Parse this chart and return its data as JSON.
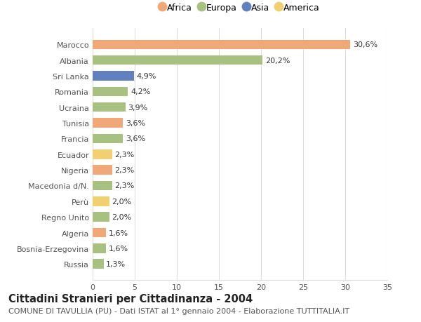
{
  "title": "Cittadini Stranieri per Cittadinanza - 2004",
  "subtitle": "COMUNE DI TAVULLIA (PU) - Dati ISTAT al 1° gennaio 2004 - Elaborazione TUTTITALIA.IT",
  "legend_labels": [
    "Africa",
    "Europa",
    "Asia",
    "America"
  ],
  "legend_colors": [
    "#f0a878",
    "#a8c080",
    "#6080c0",
    "#f0d070"
  ],
  "categories": [
    "Marocco",
    "Albania",
    "Sri Lanka",
    "Romania",
    "Ucraina",
    "Tunisia",
    "Francia",
    "Ecuador",
    "Nigeria",
    "Macedonia d/N.",
    "Perù",
    "Regno Unito",
    "Algeria",
    "Bosnia-Erzegovina",
    "Russia"
  ],
  "values": [
    30.6,
    20.2,
    4.9,
    4.2,
    3.9,
    3.6,
    3.6,
    2.3,
    2.3,
    2.3,
    2.0,
    2.0,
    1.6,
    1.6,
    1.3
  ],
  "labels": [
    "30,6%",
    "20,2%",
    "4,9%",
    "4,2%",
    "3,9%",
    "3,6%",
    "3,6%",
    "2,3%",
    "2,3%",
    "2,3%",
    "2,0%",
    "2,0%",
    "1,6%",
    "1,6%",
    "1,3%"
  ],
  "bar_colors": [
    "#f0a878",
    "#a8c080",
    "#6080c0",
    "#a8c080",
    "#a8c080",
    "#f0a878",
    "#a8c080",
    "#f0d070",
    "#f0a878",
    "#a8c080",
    "#f0d070",
    "#a8c080",
    "#f0a878",
    "#a8c080",
    "#a8c080"
  ],
  "xlim": [
    0,
    35
  ],
  "xticks": [
    0,
    5,
    10,
    15,
    20,
    25,
    30,
    35
  ],
  "background_color": "#ffffff",
  "grid_color": "#dddddd",
  "title_fontsize": 10.5,
  "subtitle_fontsize": 8,
  "label_fontsize": 8,
  "tick_fontsize": 8,
  "legend_fontsize": 9
}
